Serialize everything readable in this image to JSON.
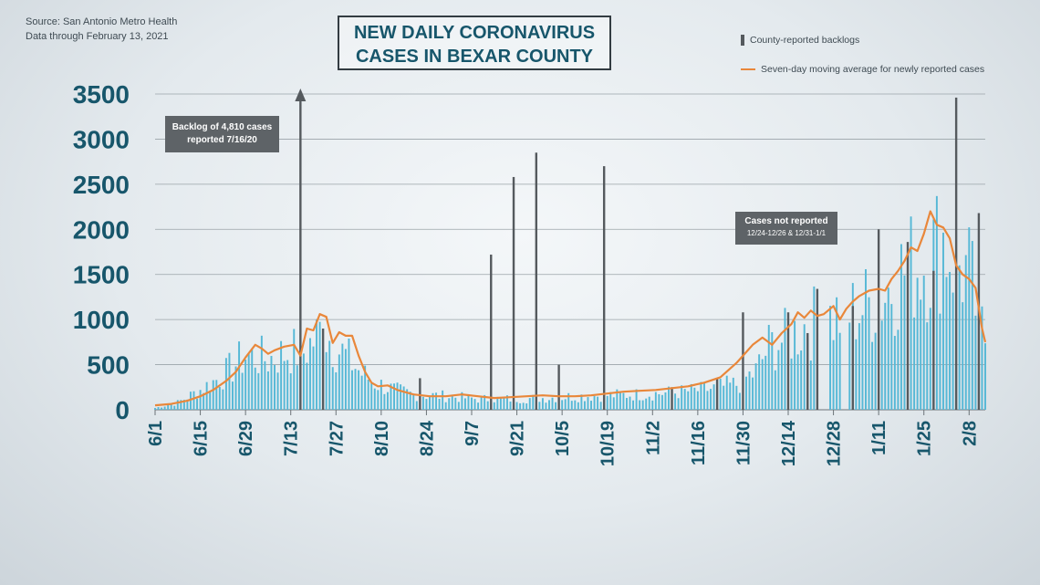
{
  "source": {
    "line1": "Source: San Antonio Metro Health",
    "line2": "Data through  February 13, 2021"
  },
  "title": {
    "line1": "NEW DAILY CORONAVIRUS",
    "line2": "CASES IN BEXAR COUNTY"
  },
  "legend": {
    "backlogs": "County-reported backlogs",
    "average": "Seven-day moving average for newly reported cases"
  },
  "annotations": {
    "backlog": {
      "line1": "Backlog of 4,810 cases",
      "line2": "reported 7/16/20"
    },
    "not_reported": {
      "line1": "Cases not reported",
      "line2": "12/24-12/26 & 12/31-1/1"
    }
  },
  "colors": {
    "daily": "#56b8d6",
    "backlog": "#555a5e",
    "average": "#e9873a",
    "text": "#17566b"
  },
  "chart_data": {
    "type": "bar",
    "start_date": "6/1",
    "days": 258,
    "ylim": [
      0,
      3500
    ],
    "yticks": [
      0,
      500,
      1000,
      1500,
      2000,
      2500,
      3000,
      3500
    ],
    "xtick_labels": [
      "6/1",
      "6/15",
      "6/29",
      "7/13",
      "7/27",
      "8/10",
      "8/24",
      "9/7",
      "9/21",
      "10/5",
      "10/19",
      "11/2",
      "11/16",
      "11/30",
      "12/14",
      "12/28",
      "1/11",
      "1/25",
      "2/8"
    ],
    "grid": true,
    "daily_anchors": [
      [
        0,
        20
      ],
      [
        7,
        80
      ],
      [
        14,
        220
      ],
      [
        21,
        380
      ],
      [
        28,
        600
      ],
      [
        35,
        560
      ],
      [
        42,
        650
      ],
      [
        46,
        640
      ],
      [
        52,
        900
      ],
      [
        56,
        700
      ],
      [
        60,
        560
      ],
      [
        64,
        400
      ],
      [
        68,
        300
      ],
      [
        74,
        220
      ],
      [
        80,
        170
      ],
      [
        90,
        150
      ],
      [
        100,
        120
      ],
      [
        110,
        120
      ],
      [
        120,
        130
      ],
      [
        130,
        150
      ],
      [
        140,
        160
      ],
      [
        150,
        170
      ],
      [
        160,
        190
      ],
      [
        170,
        220
      ],
      [
        180,
        280
      ],
      [
        186,
        420
      ],
      [
        190,
        700
      ],
      [
        196,
        800
      ],
      [
        202,
        950
      ],
      [
        208,
        1000
      ],
      [
        214,
        1050
      ],
      [
        220,
        1150
      ],
      [
        226,
        1300
      ],
      [
        232,
        1550
      ],
      [
        236,
        1600
      ],
      [
        240,
        1700
      ],
      [
        244,
        1900
      ],
      [
        248,
        1650
      ],
      [
        252,
        1500
      ],
      [
        255,
        1000
      ],
      [
        257,
        800
      ]
    ],
    "backlogs": [
      {
        "day": 45,
        "value": 4810
      },
      {
        "day": 52,
        "value": 900
      },
      {
        "day": 82,
        "value": 350
      },
      {
        "day": 104,
        "value": 1720
      },
      {
        "day": 111,
        "value": 2580
      },
      {
        "day": 118,
        "value": 2850
      },
      {
        "day": 125,
        "value": 500
      },
      {
        "day": 139,
        "value": 2700
      },
      {
        "day": 160,
        "value": 250
      },
      {
        "day": 174,
        "value": 350
      },
      {
        "day": 182,
        "value": 1080
      },
      {
        "day": 196,
        "value": 1080
      },
      {
        "day": 202,
        "value": 850
      },
      {
        "day": 205,
        "value": 1340
      },
      {
        "day": 216,
        "value": 1150
      },
      {
        "day": 224,
        "value": 2000
      },
      {
        "day": 233,
        "value": 1860
      },
      {
        "day": 241,
        "value": 1540
      },
      {
        "day": 248,
        "value": 3460
      },
      {
        "day": 255,
        "value": 2180
      }
    ],
    "missing_days": [
      206,
      207,
      208,
      213,
      214
    ],
    "moving_average": [
      [
        0,
        50
      ],
      [
        5,
        65
      ],
      [
        10,
        100
      ],
      [
        14,
        150
      ],
      [
        18,
        220
      ],
      [
        22,
        320
      ],
      [
        25,
        420
      ],
      [
        28,
        580
      ],
      [
        31,
        720
      ],
      [
        33,
        680
      ],
      [
        35,
        620
      ],
      [
        37,
        660
      ],
      [
        40,
        700
      ],
      [
        43,
        720
      ],
      [
        45,
        600
      ],
      [
        47,
        900
      ],
      [
        49,
        880
      ],
      [
        51,
        1060
      ],
      [
        53,
        1030
      ],
      [
        55,
        740
      ],
      [
        57,
        860
      ],
      [
        59,
        820
      ],
      [
        61,
        820
      ],
      [
        63,
        600
      ],
      [
        65,
        420
      ],
      [
        67,
        300
      ],
      [
        69,
        260
      ],
      [
        72,
        270
      ],
      [
        75,
        220
      ],
      [
        80,
        170
      ],
      [
        85,
        150
      ],
      [
        90,
        150
      ],
      [
        95,
        170
      ],
      [
        100,
        150
      ],
      [
        105,
        130
      ],
      [
        110,
        140
      ],
      [
        115,
        150
      ],
      [
        120,
        160
      ],
      [
        125,
        150
      ],
      [
        130,
        150
      ],
      [
        135,
        160
      ],
      [
        140,
        180
      ],
      [
        145,
        200
      ],
      [
        150,
        210
      ],
      [
        155,
        220
      ],
      [
        160,
        240
      ],
      [
        165,
        260
      ],
      [
        170,
        300
      ],
      [
        175,
        360
      ],
      [
        180,
        520
      ],
      [
        185,
        720
      ],
      [
        188,
        800
      ],
      [
        191,
        720
      ],
      [
        194,
        850
      ],
      [
        197,
        950
      ],
      [
        199,
        1080
      ],
      [
        201,
        1020
      ],
      [
        203,
        1100
      ],
      [
        205,
        1040
      ],
      [
        207,
        1060
      ],
      [
        210,
        1150
      ],
      [
        212,
        1000
      ],
      [
        214,
        1120
      ],
      [
        216,
        1200
      ],
      [
        218,
        1260
      ],
      [
        221,
        1320
      ],
      [
        224,
        1340
      ],
      [
        226,
        1320
      ],
      [
        228,
        1450
      ],
      [
        230,
        1540
      ],
      [
        232,
        1650
      ],
      [
        234,
        1800
      ],
      [
        236,
        1760
      ],
      [
        238,
        1950
      ],
      [
        240,
        2200
      ],
      [
        242,
        2050
      ],
      [
        244,
        2020
      ],
      [
        246,
        1900
      ],
      [
        248,
        1600
      ],
      [
        250,
        1500
      ],
      [
        252,
        1450
      ],
      [
        254,
        1350
      ],
      [
        256,
        900
      ],
      [
        257,
        750
      ]
    ]
  }
}
